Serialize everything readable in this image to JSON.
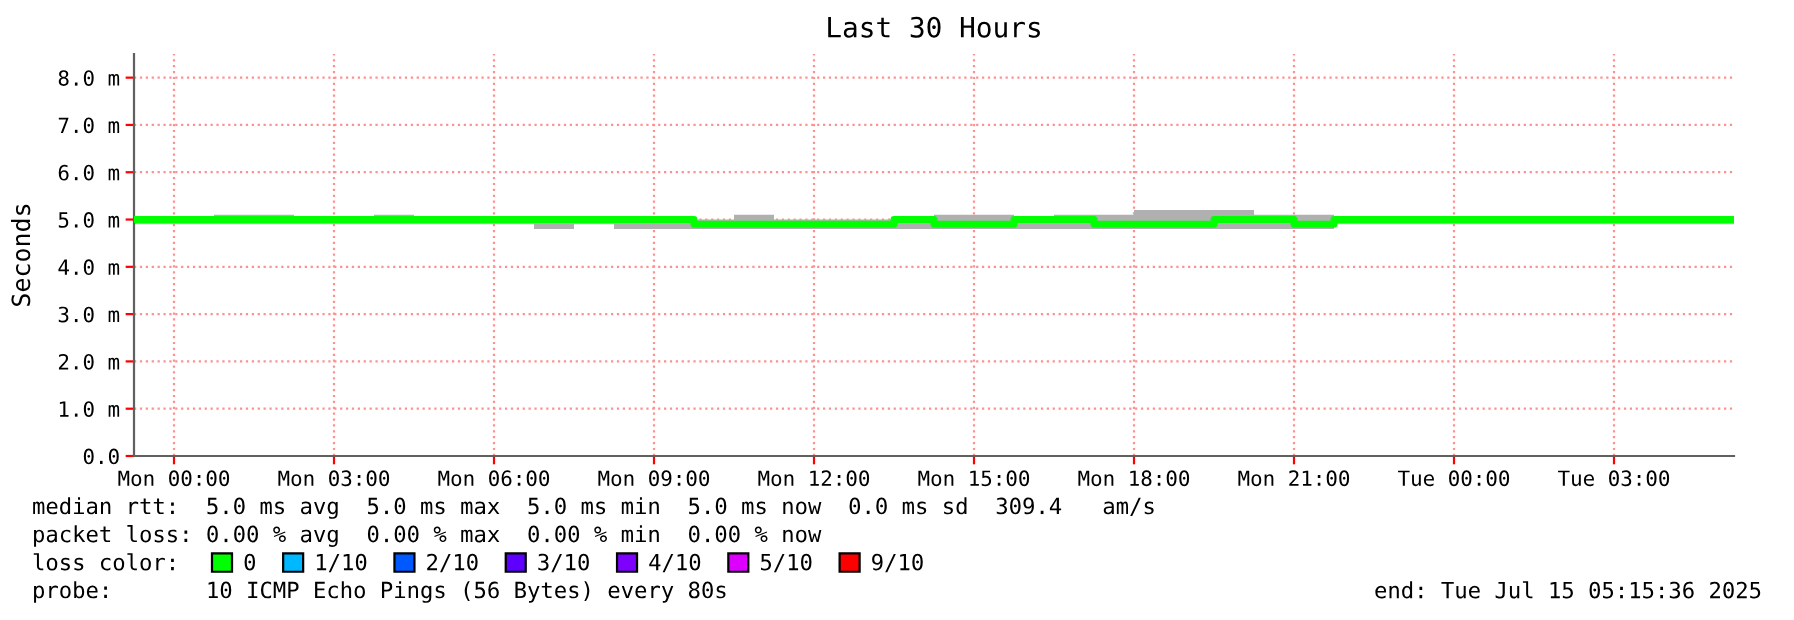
{
  "chart_data": {
    "type": "step",
    "title": "Last 30 Hours",
    "ylabel": "Seconds",
    "x": [
      "2025-07-13T23:15",
      "2025-07-14T00:00",
      "2025-07-14T00:45",
      "2025-07-14T01:30",
      "2025-07-14T02:15",
      "2025-07-14T03:00",
      "2025-07-14T03:45",
      "2025-07-14T04:30",
      "2025-07-14T05:15",
      "2025-07-14T06:00",
      "2025-07-14T06:45",
      "2025-07-14T07:30",
      "2025-07-14T08:15",
      "2025-07-14T09:00",
      "2025-07-14T09:45",
      "2025-07-14T10:30",
      "2025-07-14T11:15",
      "2025-07-14T12:00",
      "2025-07-14T12:45",
      "2025-07-14T13:30",
      "2025-07-14T14:15",
      "2025-07-14T15:00",
      "2025-07-14T15:45",
      "2025-07-14T16:30",
      "2025-07-14T17:15",
      "2025-07-14T18:00",
      "2025-07-14T18:45",
      "2025-07-14T19:30",
      "2025-07-14T20:15",
      "2025-07-14T21:00",
      "2025-07-14T21:45",
      "2025-07-14T22:30",
      "2025-07-14T23:15",
      "2025-07-15T00:00",
      "2025-07-15T00:45",
      "2025-07-15T01:30",
      "2025-07-15T02:15",
      "2025-07-15T03:00",
      "2025-07-15T03:45",
      "2025-07-15T04:30",
      "2025-07-15T05:15"
    ],
    "series": [
      {
        "name": "0",
        "color": "#00ff00",
        "values": [
          5.0,
          5.0,
          5.0,
          5.0,
          5.0,
          5.0,
          5.0,
          5.0,
          5.0,
          5.0,
          5.0,
          5.0,
          5.0,
          5.0,
          4.9,
          4.9,
          4.9,
          4.9,
          4.9,
          5.0,
          4.9,
          4.9,
          5.0,
          5.0,
          4.9,
          4.9,
          4.9,
          5.0,
          5.0,
          4.9,
          5.0,
          5.0,
          5.0,
          5.0,
          5.0,
          5.0,
          5.0,
          5.0,
          5.0,
          5.0,
          5.0
        ],
        "lower": [
          4.9,
          4.9,
          4.9,
          4.9,
          4.9,
          4.9,
          4.9,
          4.9,
          4.9,
          4.9,
          4.8,
          4.9,
          4.8,
          4.8,
          4.8,
          4.8,
          4.8,
          4.8,
          4.8,
          4.8,
          4.8,
          4.8,
          4.8,
          4.8,
          4.8,
          4.8,
          4.8,
          4.8,
          4.8,
          4.8,
          4.9,
          4.9,
          4.9,
          4.9,
          4.9,
          4.9,
          4.9,
          4.9,
          4.9,
          4.9,
          4.9
        ],
        "upper": [
          5.0,
          5.0,
          5.1,
          5.1,
          5.0,
          5.0,
          5.1,
          5.0,
          5.0,
          5.0,
          5.0,
          5.0,
          5.0,
          5.0,
          5.0,
          5.1,
          5.0,
          5.0,
          5.0,
          5.0,
          5.1,
          5.1,
          5.0,
          5.1,
          5.1,
          5.2,
          5.2,
          5.2,
          5.1,
          5.1,
          5.0,
          5.0,
          5.0,
          5.0,
          5.0,
          5.0,
          5.0,
          5.0,
          5.0,
          5.0,
          5.0
        ]
      },
      {
        "name": "1/10",
        "color": "#00b8ff",
        "values": [
          null,
          null,
          null,
          null,
          null,
          null,
          null,
          null,
          null,
          null,
          null,
          null,
          null,
          null,
          null,
          null,
          null,
          null,
          null,
          null,
          null,
          null,
          null,
          null,
          null,
          null,
          null,
          null,
          null,
          null,
          null,
          null,
          null,
          null,
          null,
          null,
          null,
          null,
          null,
          null,
          null
        ]
      },
      {
        "name": "2/10",
        "color": "#0059ff",
        "values": [
          null,
          null,
          null,
          null,
          null,
          null,
          null,
          null,
          null,
          null,
          null,
          null,
          null,
          null,
          null,
          null,
          null,
          null,
          null,
          null,
          null,
          null,
          null,
          null,
          null,
          null,
          null,
          null,
          null,
          null,
          null,
          null,
          null,
          null,
          null,
          null,
          null,
          null,
          null,
          null,
          null
        ]
      },
      {
        "name": "3/10",
        "color": "#5e00ff",
        "values": [
          null,
          null,
          null,
          null,
          null,
          null,
          null,
          null,
          null,
          null,
          null,
          null,
          null,
          null,
          null,
          null,
          null,
          null,
          null,
          null,
          null,
          null,
          null,
          null,
          null,
          null,
          null,
          null,
          null,
          null,
          null,
          null,
          null,
          null,
          null,
          null,
          null,
          null,
          null,
          null,
          null
        ]
      },
      {
        "name": "4/10",
        "color": "#7e00ff",
        "values": [
          null,
          null,
          null,
          null,
          null,
          null,
          null,
          null,
          null,
          null,
          null,
          null,
          null,
          null,
          null,
          null,
          null,
          null,
          null,
          null,
          null,
          null,
          null,
          null,
          null,
          null,
          null,
          null,
          null,
          null,
          null,
          null,
          null,
          null,
          null,
          null,
          null,
          null,
          null,
          null,
          null
        ]
      },
      {
        "name": "5/10",
        "color": "#dd00ff",
        "values": [
          null,
          null,
          null,
          null,
          null,
          null,
          null,
          null,
          null,
          null,
          null,
          null,
          null,
          null,
          null,
          null,
          null,
          null,
          null,
          null,
          null,
          null,
          null,
          null,
          null,
          null,
          null,
          null,
          null,
          null,
          null,
          null,
          null,
          null,
          null,
          null,
          null,
          null,
          null,
          null,
          null
        ]
      },
      {
        "name": "9/10",
        "color": "#ff0000",
        "values": [
          null,
          null,
          null,
          null,
          null,
          null,
          null,
          null,
          null,
          null,
          null,
          null,
          null,
          null,
          null,
          null,
          null,
          null,
          null,
          null,
          null,
          null,
          null,
          null,
          null,
          null,
          null,
          null,
          null,
          null,
          null,
          null,
          null,
          null,
          null,
          null,
          null,
          null,
          null,
          null,
          null
        ]
      }
    ],
    "xlim": [
      "2025-07-13T23:15",
      "2025-07-15T05:15"
    ],
    "xticks": [
      {
        "value": "2025-07-14T00:00",
        "label": "Mon 00:00"
      },
      {
        "value": "2025-07-14T03:00",
        "label": "Mon 03:00"
      },
      {
        "value": "2025-07-14T06:00",
        "label": "Mon 06:00"
      },
      {
        "value": "2025-07-14T09:00",
        "label": "Mon 09:00"
      },
      {
        "value": "2025-07-14T12:00",
        "label": "Mon 12:00"
      },
      {
        "value": "2025-07-14T15:00",
        "label": "Mon 15:00"
      },
      {
        "value": "2025-07-14T18:00",
        "label": "Mon 18:00"
      },
      {
        "value": "2025-07-14T21:00",
        "label": "Mon 21:00"
      },
      {
        "value": "2025-07-15T00:00",
        "label": "Tue 00:00"
      },
      {
        "value": "2025-07-15T03:00",
        "label": "Tue 03:00"
      }
    ],
    "ylim": [
      0,
      8.5
    ],
    "yticks": [
      {
        "value": 0,
        "label": "0.0"
      },
      {
        "value": 1,
        "label": "1.0 m"
      },
      {
        "value": 2,
        "label": "2.0 m"
      },
      {
        "value": 3,
        "label": "3.0 m"
      },
      {
        "value": 4,
        "label": "4.0 m"
      },
      {
        "value": 5,
        "label": "5.0 m"
      },
      {
        "value": 6,
        "label": "6.0 m"
      },
      {
        "value": 7,
        "label": "7.0 m"
      },
      {
        "value": 8,
        "label": "8.0 m"
      }
    ],
    "grid": true,
    "legend": "bottom",
    "annotations": [
      "median rtt:  5.0 ms avg  5.0 ms max  5.0 ms min  5.0 ms now  0.0 ms sd  309.4   am/s",
      "packet loss: 0.00 % avg  0.00 % max  0.00 % min  0.00 % now",
      "loss color:",
      "probe:       10 ICMP Echo Pings (56 Bytes) every 80s",
      "end: Tue Jul 15 05:15:36 2025"
    ]
  }
}
